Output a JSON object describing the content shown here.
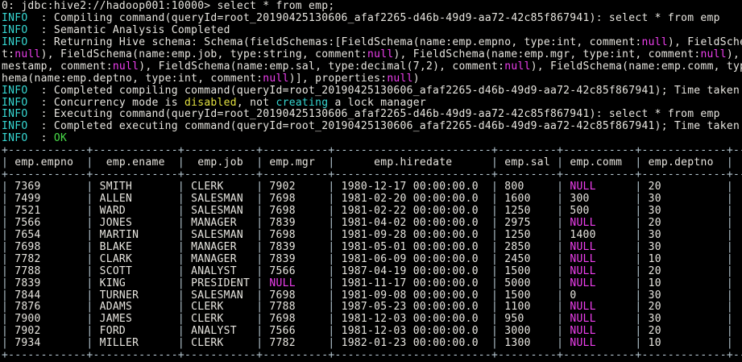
{
  "terminal": {
    "colors": {
      "background": "#000000",
      "foreground": "#e7e5df",
      "info": "#36d7d2",
      "null_value": "#ee3fee",
      "warning": "#e2e040",
      "success": "#49dd49",
      "table_border": "#b6c8d2"
    },
    "prompt": "0: jdbc:hive2://hadoop001:10000>",
    "command": "select * from emp;",
    "log_lines": [
      [
        {
          "t": "INFO  ",
          "c": "info"
        },
        {
          "t": ": Compiling command(queryId=root_20190425130606_afaf2265-d46b-49d9-aa72-42c85f867941): select * from emp",
          "c": "plain"
        }
      ],
      [
        {
          "t": "INFO  ",
          "c": "info"
        },
        {
          "t": ": Semantic Analysis Completed",
          "c": "plain"
        }
      ],
      [
        {
          "t": "INFO  ",
          "c": "info"
        },
        {
          "t": ": Returning Hive schema: Schema(fieldSchemas:[FieldSchema(name:emp.empno, type:int, comment:",
          "c": "plain"
        },
        {
          "t": "null",
          "c": "null"
        },
        {
          "t": "), FieldSchem",
          "c": "plain"
        }
      ],
      [
        {
          "t": "t:",
          "c": "plain"
        },
        {
          "t": "null",
          "c": "null"
        },
        {
          "t": "), FieldSchema(name:emp.job, type:string, comment:",
          "c": "plain"
        },
        {
          "t": "null",
          "c": "null"
        },
        {
          "t": "), FieldSchema(name:emp.mgr, type:int, comment:",
          "c": "plain"
        },
        {
          "t": "null",
          "c": "null"
        },
        {
          "t": "), F",
          "c": "plain"
        }
      ],
      [
        {
          "t": "mestamp, comment:",
          "c": "plain"
        },
        {
          "t": "null",
          "c": "null"
        },
        {
          "t": "), FieldSchema(name:emp.sal, type:decimal(7,2), comment:",
          "c": "plain"
        },
        {
          "t": "null",
          "c": "null"
        },
        {
          "t": "), FieldSchema(name:emp.comm, type",
          "c": "plain"
        }
      ],
      [
        {
          "t": "hema(name:emp.deptno, type:int, comment:",
          "c": "plain"
        },
        {
          "t": "null",
          "c": "null"
        },
        {
          "t": ")], properties:",
          "c": "plain"
        },
        {
          "t": "null",
          "c": "null"
        },
        {
          "t": ")",
          "c": "plain"
        }
      ],
      [
        {
          "t": "INFO  ",
          "c": "info"
        },
        {
          "t": ": Completed compiling command(queryId=root_20190425130606_afaf2265-d46b-49d9-aa72-42c85f867941); Time taken:",
          "c": "plain"
        }
      ],
      [
        {
          "t": "INFO  ",
          "c": "info"
        },
        {
          "t": ": Concurrency mode is ",
          "c": "plain"
        },
        {
          "t": "disabled",
          "c": "warn"
        },
        {
          "t": ", not ",
          "c": "plain"
        },
        {
          "t": "creating",
          "c": "info"
        },
        {
          "t": " a lock manager",
          "c": "plain"
        }
      ],
      [
        {
          "t": "INFO  ",
          "c": "info"
        },
        {
          "t": ": Executing command(queryId=root_20190425130606_afaf2265-d46b-49d9-aa72-42c85f867941): select * from emp",
          "c": "plain"
        }
      ],
      [
        {
          "t": "INFO  ",
          "c": "info"
        },
        {
          "t": ": Completed executing command(queryId=root_20190425130606_afaf2265-d46b-49d9-aa72-42c85f867941); Time taken:",
          "c": "plain"
        }
      ],
      [
        {
          "t": "INFO  ",
          "c": "info"
        },
        {
          "t": ": ",
          "c": "plain"
        },
        {
          "t": "OK",
          "c": "ok"
        }
      ]
    ],
    "result_table": {
      "null_token": "NULL",
      "border_overflow": "---",
      "columns": [
        {
          "name": "emp.empno",
          "width": 10
        },
        {
          "name": "emp.ename",
          "width": 11
        },
        {
          "name": "emp.job",
          "width": 9
        },
        {
          "name": "emp.mgr",
          "width": 8
        },
        {
          "name": "emp.hiredate",
          "width": 22
        },
        {
          "name": "emp.sal",
          "width": 7
        },
        {
          "name": "emp.comm",
          "width": 9
        },
        {
          "name": "emp.deptno",
          "width": 11
        }
      ],
      "rows": [
        [
          "7369",
          "SMITH",
          "CLERK",
          "7902",
          "1980-12-17 00:00:00.0",
          "800",
          "NULL",
          "20"
        ],
        [
          "7499",
          "ALLEN",
          "SALESMAN",
          "7698",
          "1981-02-20 00:00:00.0",
          "1600",
          "300",
          "30"
        ],
        [
          "7521",
          "WARD",
          "SALESMAN",
          "7698",
          "1981-02-22 00:00:00.0",
          "1250",
          "500",
          "30"
        ],
        [
          "7566",
          "JONES",
          "MANAGER",
          "7839",
          "1981-04-02 00:00:00.0",
          "2975",
          "NULL",
          "20"
        ],
        [
          "7654",
          "MARTIN",
          "SALESMAN",
          "7698",
          "1981-09-28 00:00:00.0",
          "1250",
          "1400",
          "30"
        ],
        [
          "7698",
          "BLAKE",
          "MANAGER",
          "7839",
          "1981-05-01 00:00:00.0",
          "2850",
          "NULL",
          "30"
        ],
        [
          "7782",
          "CLARK",
          "MANAGER",
          "7839",
          "1981-06-09 00:00:00.0",
          "2450",
          "NULL",
          "10"
        ],
        [
          "7788",
          "SCOTT",
          "ANALYST",
          "7566",
          "1987-04-19 00:00:00.0",
          "1500",
          "NULL",
          "20"
        ],
        [
          "7839",
          "KING",
          "PRESIDENT",
          "NULL",
          "1981-11-17 00:00:00.0",
          "5000",
          "NULL",
          "10"
        ],
        [
          "7844",
          "TURNER",
          "SALESMAN",
          "7698",
          "1981-09-08 00:00:00.0",
          "1500",
          "0",
          "30"
        ],
        [
          "7876",
          "ADAMS",
          "CLERK",
          "7788",
          "1987-05-23 00:00:00.0",
          "1100",
          "NULL",
          "20"
        ],
        [
          "7900",
          "JAMES",
          "CLERK",
          "7698",
          "1981-12-03 00:00:00.0",
          "950",
          "NULL",
          "30"
        ],
        [
          "7902",
          "FORD",
          "ANALYST",
          "7566",
          "1981-12-03 00:00:00.0",
          "3000",
          "NULL",
          "20"
        ],
        [
          "7934",
          "MILLER",
          "CLERK",
          "7782",
          "1982-01-23 00:00:00.0",
          "1300",
          "NULL",
          "10"
        ]
      ]
    }
  }
}
